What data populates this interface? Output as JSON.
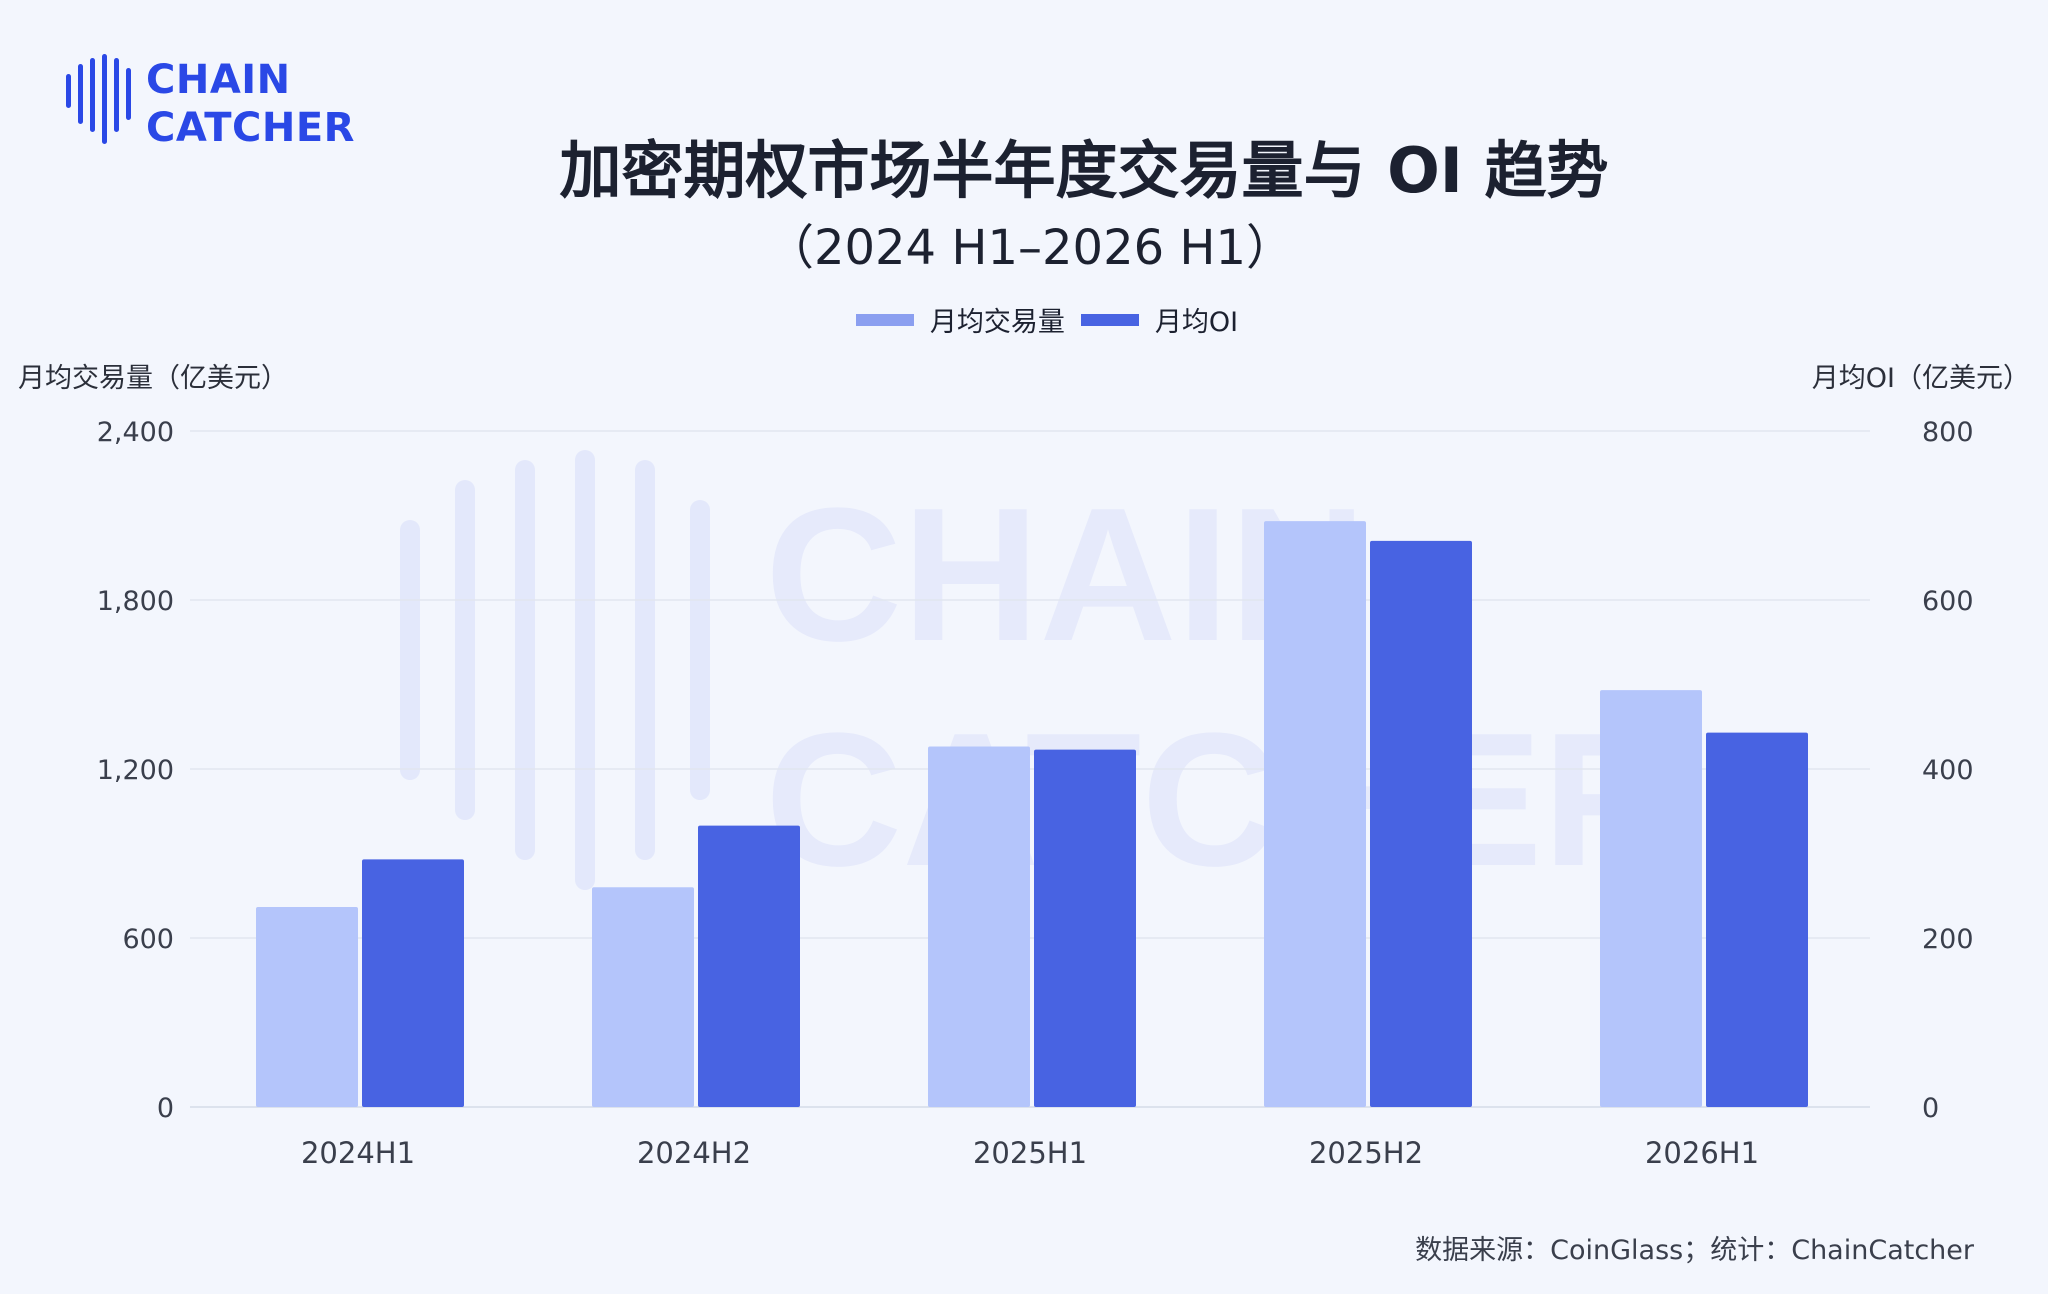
{
  "brand": {
    "line1": "CHAIN",
    "line2": "CATCHER",
    "watermark": [
      "CHAIN",
      "CATCHER"
    ]
  },
  "source_note": "数据来源：CoinGlass；统计：ChainCatcher",
  "colors": {
    "volume": "#b4c5fb",
    "oi": "#4863e2",
    "legend_volume": "#8b9ff0",
    "brand": "#2a48e6"
  },
  "chart_data": {
    "type": "bar",
    "title": "加密期权市场半年度交易量与 OI 趋势",
    "subtitle": "（2024 H1–2026 H1）",
    "categories": [
      "2024H1",
      "2024H2",
      "2025H1",
      "2025H2",
      "2026H1"
    ],
    "series": [
      {
        "name": "月均交易量",
        "axis": "left",
        "values": [
          710,
          780,
          1280,
          2080,
          1480
        ]
      },
      {
        "name": "月均OI",
        "axis": "right",
        "values": [
          293,
          333,
          423,
          670,
          443
        ]
      }
    ],
    "ylabel": "月均交易量（亿美元）",
    "ylabel_right": "月均OI（亿美元）",
    "ylim": [
      0,
      2400
    ],
    "ylim_right": [
      0,
      800
    ],
    "yticks": [
      "0",
      "600",
      "1,200",
      "1,800",
      "2,400"
    ],
    "yticks_right": [
      "0",
      "200",
      "400",
      "600",
      "800"
    ],
    "grid": true,
    "legend_position": "top-center"
  }
}
